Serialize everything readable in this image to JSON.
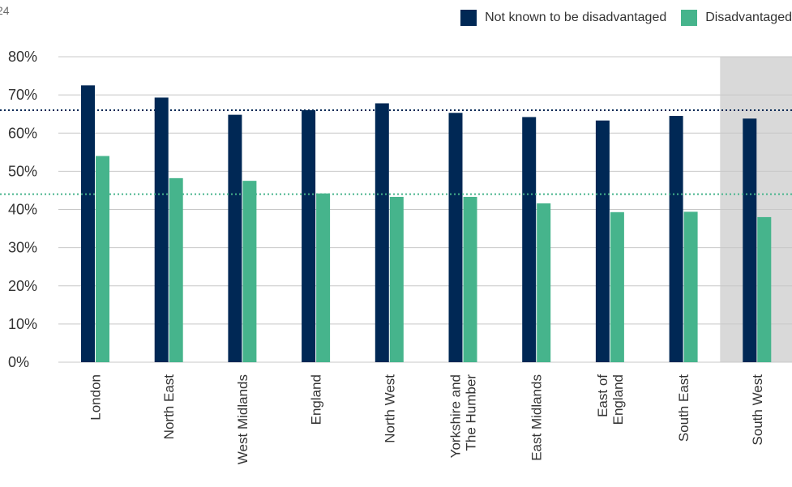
{
  "corner_label": "24",
  "colors": {
    "not_disadvantaged": "#002855",
    "disadvantaged": "#46b48c",
    "highlight_band": "#d9d9d9",
    "grid": "#c8c8c8",
    "axis_text": "#333333"
  },
  "chart_data": {
    "type": "bar",
    "title": "",
    "xlabel": "",
    "ylabel": "",
    "ylim": [
      0,
      80
    ],
    "yticks": [
      "0%",
      "10%",
      "20%",
      "30%",
      "40%",
      "50%",
      "60%",
      "70%",
      "80%"
    ],
    "grid": true,
    "legend_position": "top-right",
    "categories": [
      [
        "London"
      ],
      [
        "North East"
      ],
      [
        "West Midlands"
      ],
      [
        "England"
      ],
      [
        "North West"
      ],
      [
        "Yorkshire and",
        "The Humber"
      ],
      [
        "East Midlands"
      ],
      [
        "East of",
        "England"
      ],
      [
        "South East"
      ],
      [
        "South West"
      ]
    ],
    "series": [
      {
        "name": "Not known to be disadvantaged",
        "color": "#002855",
        "values": [
          72.5,
          69.3,
          64.8,
          66.0,
          67.8,
          65.3,
          64.2,
          63.3,
          64.5,
          63.8
        ]
      },
      {
        "name": "Disadvantaged",
        "color": "#46b48c",
        "values": [
          54.0,
          48.2,
          47.5,
          44.2,
          43.3,
          43.3,
          41.6,
          39.3,
          39.4,
          38.0
        ]
      }
    ],
    "reference_lines": [
      {
        "series": "Not known to be disadvantaged",
        "value": 66.0,
        "style": "dotted",
        "color": "#002855"
      },
      {
        "series": "Disadvantaged",
        "value": 44.0,
        "style": "dotted",
        "color": "#46b48c"
      }
    ],
    "highlighted_category": "South West"
  }
}
